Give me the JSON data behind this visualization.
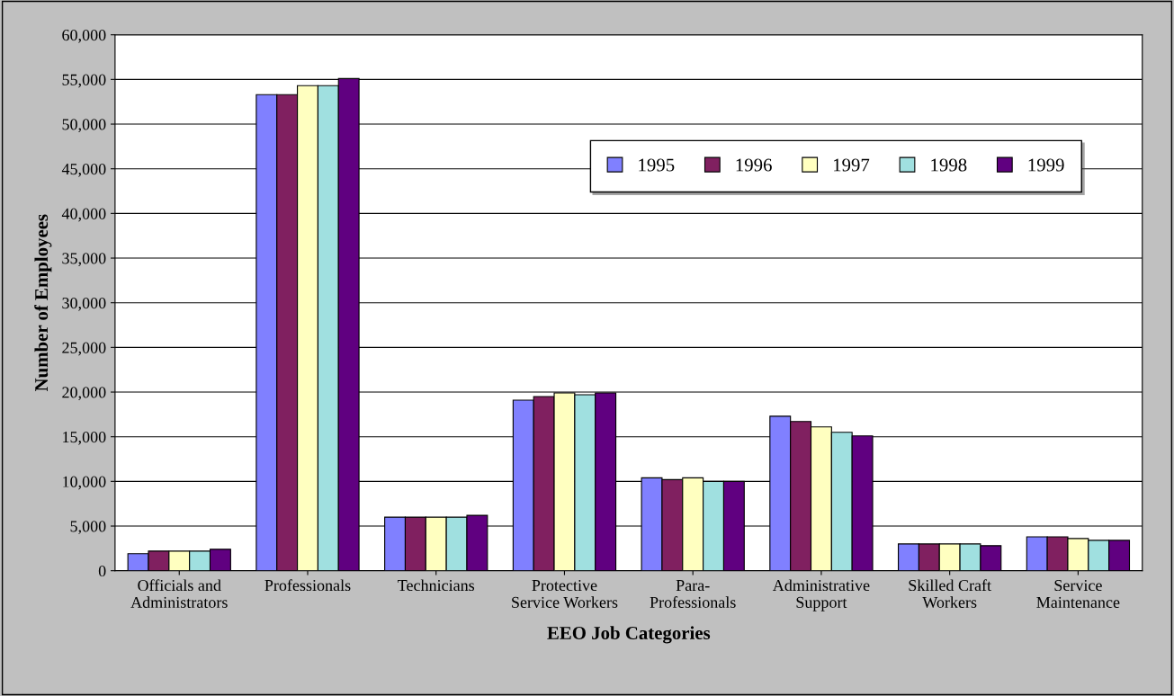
{
  "chart_data": {
    "type": "bar",
    "xlabel": "EEO Job Categories",
    "ylabel": "Number of Employees",
    "categories": [
      "Officials and\nAdministrators",
      "Professionals",
      "Technicians",
      "Protective\nService Workers",
      "Para-\nProfessionals",
      "Administrative\nSupport",
      "Skilled Craft\nWorkers",
      "Service\nMaintenance"
    ],
    "series": [
      {
        "name": "1995",
        "color": "#8080ff",
        "values": [
          1900,
          53300,
          6000,
          19100,
          10400,
          17300,
          3000,
          3800
        ]
      },
      {
        "name": "1996",
        "color": "#802060",
        "values": [
          2200,
          53300,
          6000,
          19500,
          10200,
          16700,
          3000,
          3800
        ]
      },
      {
        "name": "1997",
        "color": "#ffffc0",
        "values": [
          2200,
          54300,
          6000,
          19900,
          10400,
          16100,
          3000,
          3600
        ]
      },
      {
        "name": "1998",
        "color": "#a0e0e0",
        "values": [
          2200,
          54300,
          6000,
          19700,
          10000,
          15500,
          3000,
          3400
        ]
      },
      {
        "name": "1999",
        "color": "#600080",
        "values": [
          2400,
          55100,
          6200,
          19900,
          10000,
          15100,
          2800,
          3400
        ]
      }
    ],
    "ylim": [
      0,
      60000
    ],
    "yticks": [
      0,
      {
        "value": 5000,
        "label": "5,000"
      },
      {
        "value": 10000,
        "label": "10,000"
      },
      {
        "value": 15000,
        "label": "15,000"
      },
      {
        "value": 20000,
        "label": "20,000"
      },
      {
        "value": 25000,
        "label": "25,000"
      },
      {
        "value": 30000,
        "label": "30,000"
      },
      {
        "value": 35000,
        "label": "35,000"
      },
      {
        "value": 40000,
        "label": "40,000"
      },
      {
        "value": 45000,
        "label": "45,000"
      },
      {
        "value": 50000,
        "label": "50,000"
      },
      {
        "value": 55000,
        "label": "55,000"
      },
      {
        "value": 60000,
        "label": "60,000"
      }
    ],
    "grid": "y",
    "legend": "top right"
  }
}
